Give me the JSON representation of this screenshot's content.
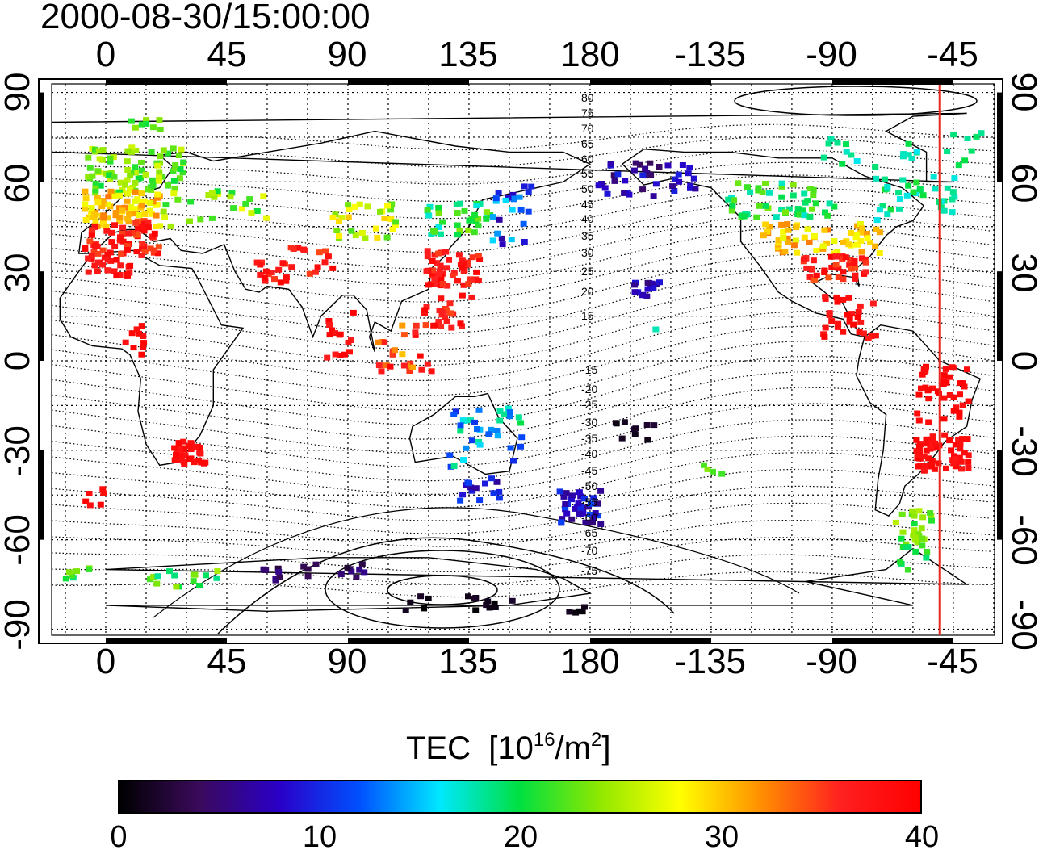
{
  "title": "2000-08-30/15:00:00",
  "map": {
    "lon_ticks": [
      "0",
      "45",
      "90",
      "135",
      "180",
      "-135",
      "-90",
      "-45"
    ],
    "lat_ticks": [
      "90",
      "60",
      "30",
      "0",
      "-30",
      "-60",
      "-90"
    ],
    "contour_labels": [
      "80",
      "75",
      "70",
      "65",
      "60",
      "55",
      "50",
      "45",
      "40",
      "35",
      "30",
      "25",
      "20",
      "15",
      "-15",
      "-20",
      "-25",
      "-30",
      "-35",
      "-40",
      "-45",
      "-50",
      "-55",
      "-60",
      "-65",
      "-70",
      "-75"
    ],
    "marker_longitude": -50,
    "marker_color": "#e8281e"
  },
  "colorbar": {
    "label": "TEC",
    "unit_base": "10",
    "unit_exp": "16",
    "unit_mid": "/m",
    "unit_exp2": "2",
    "ticks": [
      "0",
      "10",
      "20",
      "30",
      "40"
    ],
    "range": [
      0,
      40
    ],
    "stops": [
      "#000000",
      "#3a0a5c",
      "#2a00c8",
      "#0050ff",
      "#00e8ff",
      "#00e040",
      "#90e800",
      "#ffff00",
      "#ff9000",
      "#ff2020",
      "#ff0000"
    ]
  }
}
